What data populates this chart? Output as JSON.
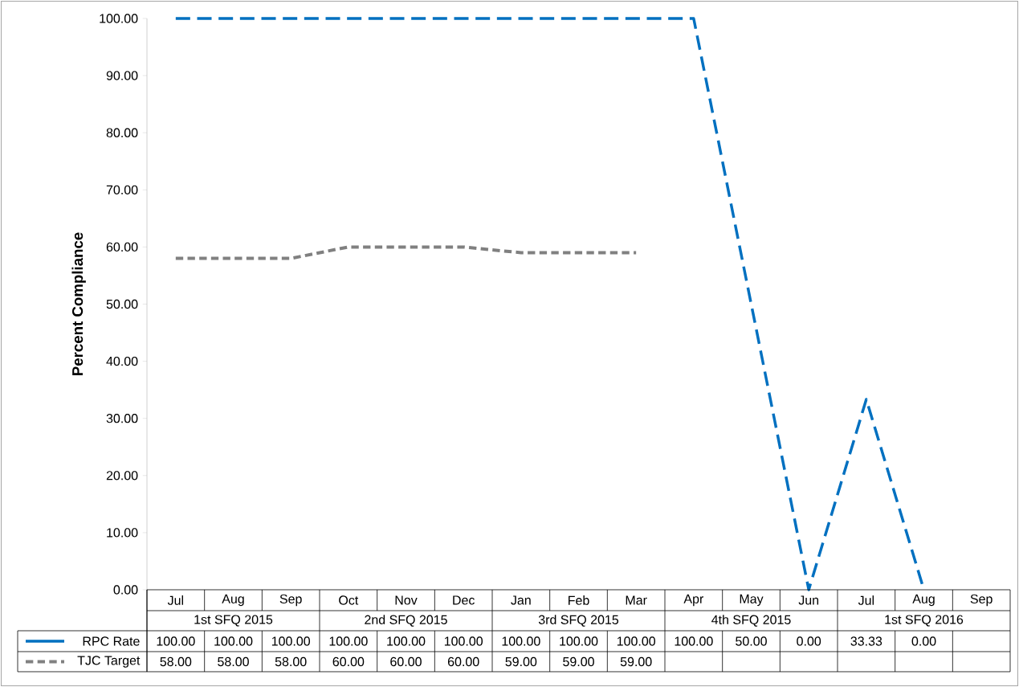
{
  "chart_data": {
    "type": "line",
    "ylabel": "Percent Compliance",
    "categories": [
      "Jul",
      "Aug",
      "Sep",
      "Oct",
      "Nov",
      "Dec",
      "Jan",
      "Feb",
      "Mar",
      "Apr",
      "May",
      "Jun",
      "Jul",
      "Aug",
      "Sep"
    ],
    "annotations": [
      "1st SFQ 2015",
      "2nd SFQ 2015",
      "3rd SFQ 2015",
      "4th SFQ 2015",
      "1st SFQ 2016"
    ],
    "series": [
      {
        "name": "RPC Rate",
        "color": "#0070c0",
        "line_style": "dashed",
        "values": [
          100,
          100,
          100,
          100,
          100,
          100,
          100,
          100,
          100,
          100,
          50,
          0,
          33.33,
          0,
          null
        ],
        "value_labels": [
          "100.00",
          "100.00",
          "100.00",
          "100.00",
          "100.00",
          "100.00",
          "100.00",
          "100.00",
          "100.00",
          "100.00",
          "50.00",
          "0.00",
          "33.33",
          "0.00",
          null
        ]
      },
      {
        "name": "TJC Target",
        "color": "#808080",
        "line_style": "dotted",
        "values": [
          58,
          58,
          58,
          60,
          60,
          60,
          59,
          59,
          59,
          null,
          null,
          null,
          null,
          null,
          null
        ],
        "value_labels": [
          "58.00",
          "58.00",
          "58.00",
          "60.00",
          "60.00",
          "60.00",
          "59.00",
          "59.00",
          "59.00",
          null,
          null,
          null,
          null,
          null,
          null
        ]
      }
    ],
    "ylim": [
      0,
      100
    ],
    "yticks": [
      {
        "value": 0,
        "label": "0.00"
      },
      {
        "value": 10,
        "label": "10.00"
      },
      {
        "value": 20,
        "label": "20.00"
      },
      {
        "value": 30,
        "label": "30.00"
      },
      {
        "value": 40,
        "label": "40.00"
      },
      {
        "value": 50,
        "label": "50.00"
      },
      {
        "value": 60,
        "label": "60.00"
      },
      {
        "value": 70,
        "label": "70.00"
      },
      {
        "value": 80,
        "label": "80.00"
      },
      {
        "value": 90,
        "label": "90.00"
      },
      {
        "value": 100,
        "label": "100.00"
      }
    ],
    "grid": false,
    "marker": "none",
    "legend": "bottom"
  }
}
